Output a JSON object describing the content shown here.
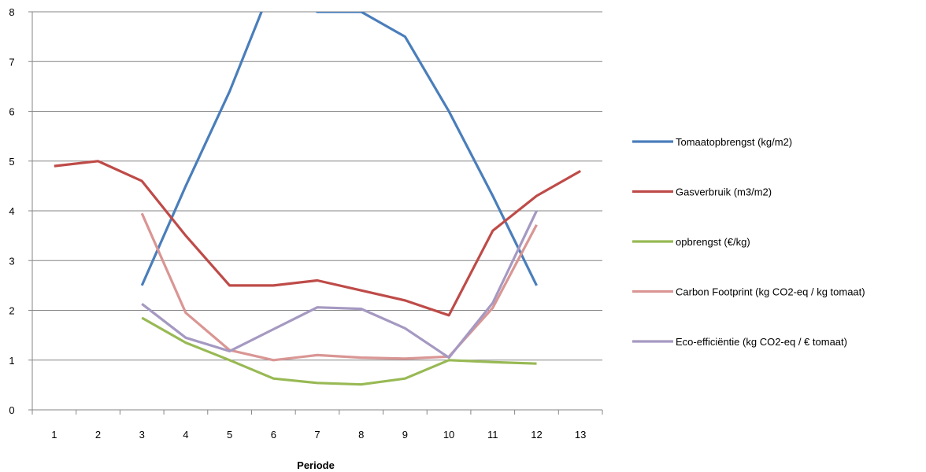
{
  "chart_data": {
    "type": "line",
    "title": "",
    "xlabel": "Periode",
    "ylabel": "",
    "categories": [
      "1",
      "2",
      "3",
      "4",
      "5",
      "6",
      "7",
      "8",
      "9",
      "10",
      "11",
      "12",
      "13"
    ],
    "ylim": [
      0,
      8
    ],
    "yticks": [
      0,
      1,
      2,
      3,
      4,
      5,
      6,
      7,
      8
    ],
    "grid": "horizontal",
    "legend_position": "right",
    "series": [
      {
        "name": "Tomaatopbrengst  (kg/m2)",
        "color": "#4a7ebb",
        "values": [
          null,
          null,
          2.5,
          4.5,
          6.4,
          8.6,
          8.0,
          8.0,
          7.5,
          6.0,
          4.3,
          2.5,
          null
        ]
      },
      {
        "name": "Gasverbruik (m3/m2)",
        "color": "#be4b48",
        "values": [
          4.9,
          5.0,
          4.6,
          3.5,
          2.5,
          2.5,
          2.6,
          2.4,
          2.2,
          1.9,
          3.6,
          4.3,
          4.8
        ]
      },
      {
        "name": "opbrengst (€/kg)",
        "color": "#98b954",
        "values": [
          null,
          null,
          1.85,
          1.35,
          1.0,
          0.63,
          0.54,
          0.51,
          0.63,
          1.0,
          0.96,
          0.93,
          null
        ]
      },
      {
        "name": "Carbon Footprint  (kg CO2-eq / kg tomaat)",
        "color": "#d99694",
        "values": [
          null,
          null,
          3.95,
          1.95,
          1.2,
          1.0,
          1.1,
          1.05,
          1.03,
          1.07,
          2.05,
          3.72,
          null
        ]
      },
      {
        "name": "Eco-efficiëntie (kg CO2-eq / € tomaat)",
        "color": "#a599c2",
        "values": [
          null,
          null,
          2.13,
          1.45,
          1.18,
          1.62,
          2.06,
          2.03,
          1.64,
          1.05,
          2.15,
          4.0,
          null
        ]
      }
    ]
  }
}
